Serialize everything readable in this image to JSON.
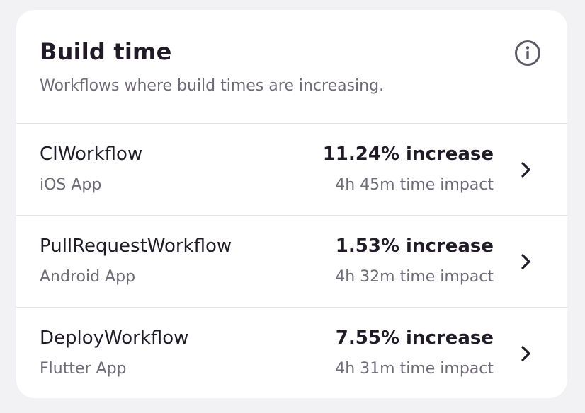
{
  "card": {
    "title": "Build time",
    "subtitle": "Workflows where build times are increasing.",
    "info_icon": "info-circle-icon"
  },
  "workflows": [
    {
      "name": "CIWorkflow",
      "app": "iOS App",
      "increase": "11.24% increase",
      "impact": "4h 45m time impact"
    },
    {
      "name": "PullRequestWorkflow",
      "app": "Android App",
      "increase": "1.53% increase",
      "impact": "4h 32m time impact"
    },
    {
      "name": "DeployWorkflow",
      "app": "Flutter App",
      "increase": "7.55% increase",
      "impact": "4h 31m time impact"
    }
  ],
  "colors": {
    "background": "#f2f1f4",
    "card": "#ffffff",
    "text_primary": "#201b27",
    "text_secondary": "#6f6a78",
    "divider": "#e4e2e8"
  }
}
